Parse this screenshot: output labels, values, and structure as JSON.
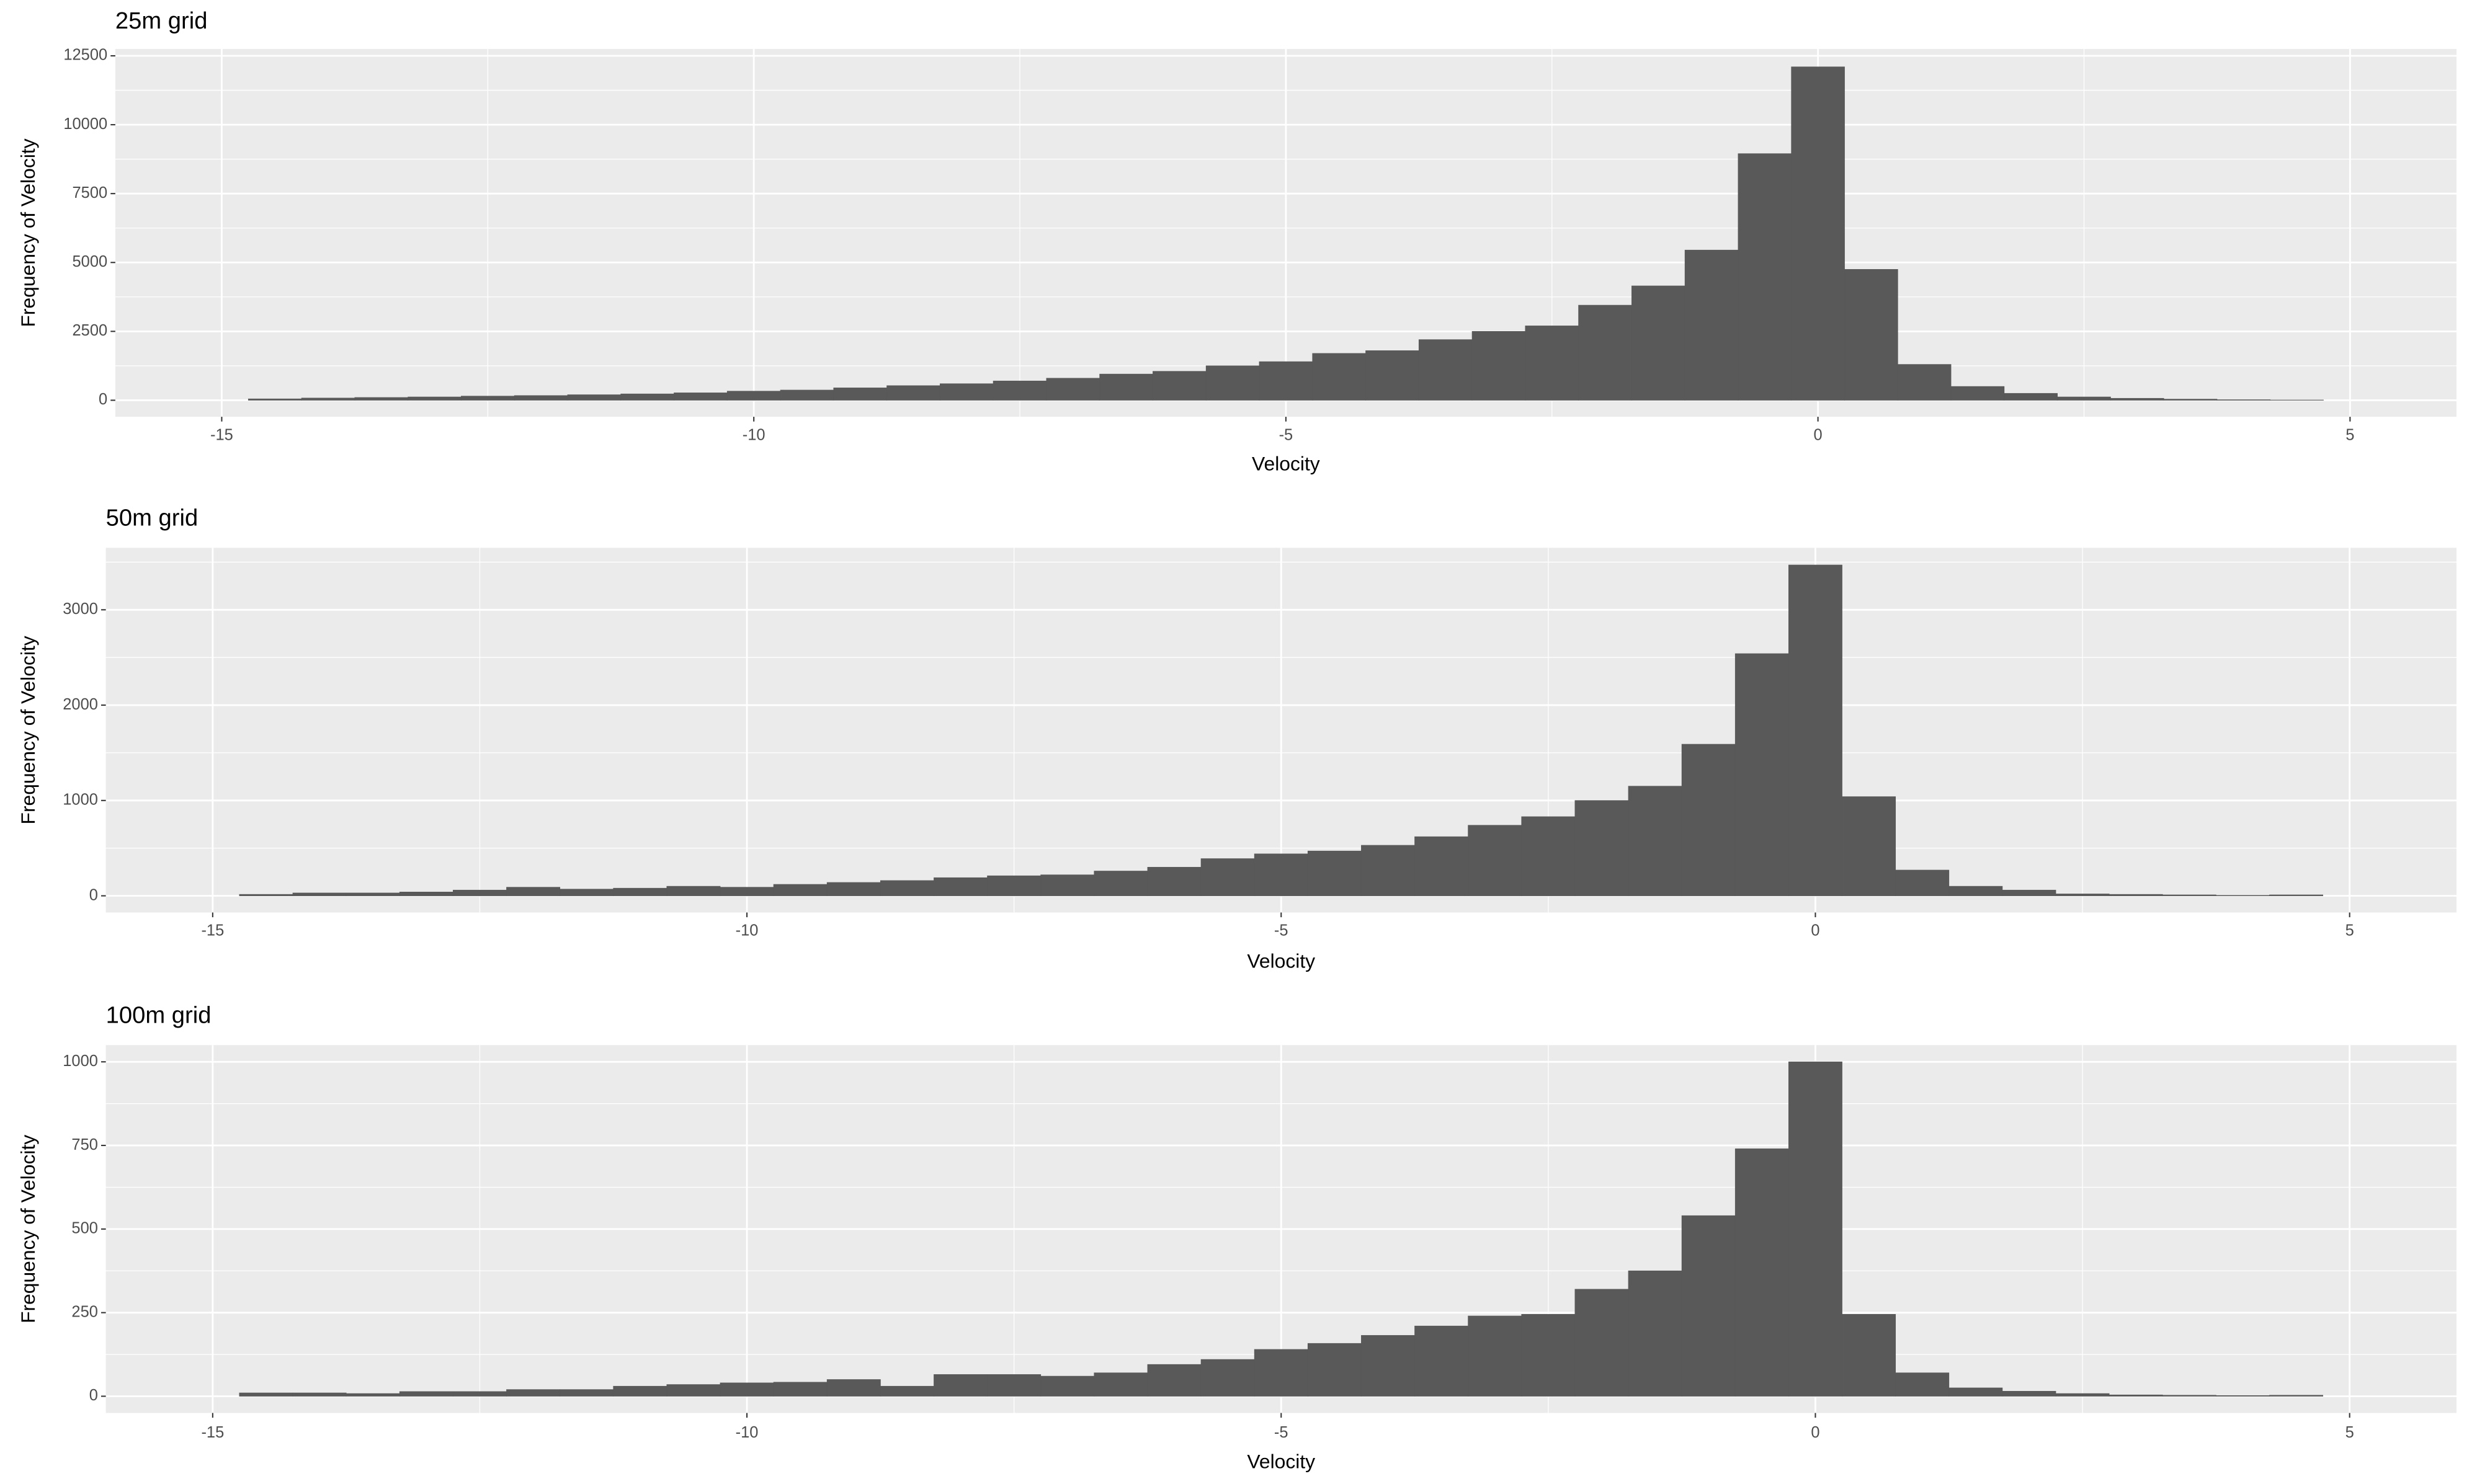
{
  "chart_data": [
    {
      "type": "histogram",
      "title": "25m grid",
      "xlabel": "Velocity",
      "ylabel": "Frequency of Velocity",
      "color": "#595959",
      "bins": [
        -14.75,
        -14.25,
        -13.75,
        -13.25,
        -12.75,
        -12.25,
        -11.75,
        -11.25,
        -10.75,
        -10.25,
        -9.75,
        -9.25,
        -8.75,
        -8.25,
        -7.75,
        -7.25,
        -6.75,
        -6.25,
        -5.75,
        -5.25,
        -4.75,
        -4.25,
        -3.75,
        -3.25,
        -2.75,
        -2.25,
        -1.75,
        -1.25,
        -0.75,
        -0.25,
        0.25,
        0.75,
        1.25,
        1.75,
        2.25,
        2.75,
        3.25,
        3.75,
        4.25,
        4.75
      ],
      "values": [
        50,
        80,
        100,
        120,
        150,
        170,
        200,
        230,
        270,
        330,
        370,
        450,
        530,
        600,
        700,
        800,
        950,
        1050,
        1250,
        1400,
        1700,
        1800,
        2200,
        2500,
        2700,
        3450,
        4150,
        5450,
        8950,
        12100,
        4750,
        1300,
        500,
        250,
        120,
        70,
        40,
        20,
        10
      ],
      "xlim": [
        -16,
        6
      ],
      "ylim": [
        -600,
        12750
      ],
      "xticks": [
        -15,
        -10,
        -5,
        0,
        5
      ],
      "yticks": [
        0,
        2500,
        5000,
        7500,
        10000,
        12500
      ],
      "xminorticks": [
        -12.5,
        -7.5,
        -2.5,
        2.5
      ],
      "yminorticks": [
        1250,
        3750,
        6250,
        8750,
        11250
      ],
      "grid": true
    },
    {
      "type": "histogram",
      "title": "50m grid",
      "xlabel": "Velocity",
      "ylabel": "Frequency of Velocity",
      "color": "#595959",
      "bins": [
        -14.75,
        -14.25,
        -13.75,
        -13.25,
        -12.75,
        -12.25,
        -11.75,
        -11.25,
        -10.75,
        -10.25,
        -9.75,
        -9.25,
        -8.75,
        -8.25,
        -7.75,
        -7.25,
        -6.75,
        -6.25,
        -5.75,
        -5.25,
        -4.75,
        -4.25,
        -3.75,
        -3.25,
        -2.75,
        -2.25,
        -1.75,
        -1.25,
        -0.75,
        -0.25,
        0.25,
        0.75,
        1.25,
        1.75,
        2.25,
        2.75,
        3.25,
        3.75,
        4.25,
        4.75
      ],
      "values": [
        15,
        30,
        30,
        40,
        60,
        90,
        70,
        80,
        100,
        90,
        120,
        140,
        160,
        190,
        210,
        220,
        260,
        300,
        390,
        440,
        470,
        530,
        620,
        740,
        830,
        1000,
        1150,
        1590,
        2540,
        3470,
        1040,
        270,
        100,
        60,
        20,
        15,
        10,
        5,
        10
      ],
      "xlim": [
        -16,
        6
      ],
      "ylim": [
        -175,
        3650
      ],
      "xticks": [
        -15,
        -10,
        -5,
        0,
        5
      ],
      "yticks": [
        0,
        1000,
        2000,
        3000
      ],
      "xminorticks": [
        -12.5,
        -7.5,
        -2.5,
        2.5
      ],
      "yminorticks": [
        500,
        1500,
        2500,
        3500
      ],
      "grid": true
    },
    {
      "type": "histogram",
      "title": "100m grid",
      "xlabel": "Velocity",
      "ylabel": "Frequency of Velocity",
      "color": "#595959",
      "bins": [
        -14.75,
        -14.25,
        -13.75,
        -13.25,
        -12.75,
        -12.25,
        -11.75,
        -11.25,
        -10.75,
        -10.25,
        -9.75,
        -9.25,
        -8.75,
        -8.25,
        -7.75,
        -7.25,
        -6.75,
        -6.25,
        -5.75,
        -5.25,
        -4.75,
        -4.25,
        -3.75,
        -3.25,
        -2.75,
        -2.25,
        -1.75,
        -1.25,
        -0.75,
        -0.25,
        0.25,
        0.75,
        1.25,
        1.75,
        2.25,
        2.75,
        3.25,
        3.75,
        4.25,
        4.75
      ],
      "values": [
        10,
        10,
        8,
        14,
        14,
        20,
        20,
        30,
        35,
        40,
        42,
        50,
        30,
        65,
        65,
        60,
        70,
        95,
        110,
        140,
        158,
        182,
        210,
        240,
        245,
        320,
        375,
        540,
        740,
        1000,
        245,
        70,
        25,
        15,
        8,
        4,
        3,
        2,
        3
      ],
      "xlim": [
        -16,
        6
      ],
      "ylim": [
        -50,
        1050
      ],
      "xticks": [
        -15,
        -10,
        -5,
        0,
        5
      ],
      "yticks": [
        0,
        250,
        500,
        750,
        1000
      ],
      "xminorticks": [
        -12.5,
        -7.5,
        -2.5,
        2.5
      ],
      "yminorticks": [
        125,
        375,
        625,
        875
      ],
      "grid": true
    }
  ]
}
